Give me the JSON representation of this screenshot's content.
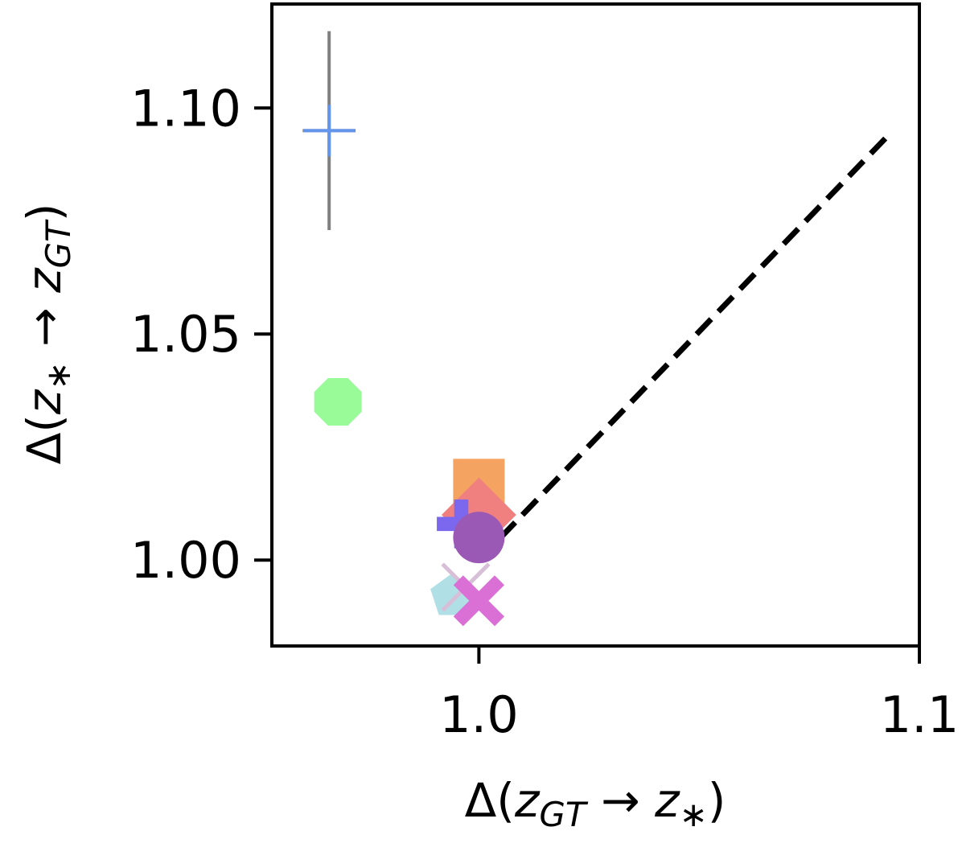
{
  "chart_data": {
    "type": "scatter",
    "xlabel": "Δ(z_GT → z_*)",
    "ylabel": "Δ(z_* → z_GT)",
    "xlabel_parts": [
      "Δ(",
      "z",
      "GT",
      " → ",
      "z",
      "∗",
      ")"
    ],
    "ylabel_parts": [
      "Δ(",
      "z",
      "∗",
      " → ",
      "z",
      "GT",
      ")"
    ],
    "xlim": [
      0.953,
      1.1
    ],
    "ylim": [
      0.981,
      1.123
    ],
    "x_ticks": [
      1.0,
      1.1
    ],
    "x_tick_labels": [
      "1.0",
      "1.1"
    ],
    "y_ticks": [
      1.0,
      1.05,
      1.1
    ],
    "y_tick_labels": [
      "1.00",
      "1.05",
      "1.10"
    ],
    "grid": false,
    "reference_line": {
      "style": "dashed",
      "color": "#000000",
      "from": [
        1.0,
        1.0
      ],
      "to": [
        1.093,
        1.094
      ]
    },
    "points": [
      {
        "marker": "plus",
        "color": "#6495ED",
        "x": 0.966,
        "y": 1.095,
        "xerr": 0.006,
        "yerr": 0.022,
        "err_color": "#808080"
      },
      {
        "marker": "octagon",
        "color": "#98FB98",
        "x": 0.968,
        "y": 1.035
      },
      {
        "marker": "square",
        "color": "#F4A460",
        "x": 1.0,
        "y": 1.015
      },
      {
        "marker": "diamond",
        "color": "#F08080",
        "x": 1.0,
        "y": 1.01
      },
      {
        "marker": "plus-filled",
        "color": "#7B68EE",
        "x": 0.996,
        "y": 1.008
      },
      {
        "marker": "circle",
        "color": "#9B59B6",
        "x": 1.0,
        "y": 1.005
      },
      {
        "marker": "pentagon",
        "color": "#B0E0E6",
        "x": 0.994,
        "y": 0.992
      },
      {
        "marker": "x-thin",
        "color": "#D8BFD8",
        "x": 0.997,
        "y": 0.994
      },
      {
        "marker": "x-filled",
        "color": "#DA70D6",
        "x": 1.0,
        "y": 0.991
      }
    ]
  }
}
